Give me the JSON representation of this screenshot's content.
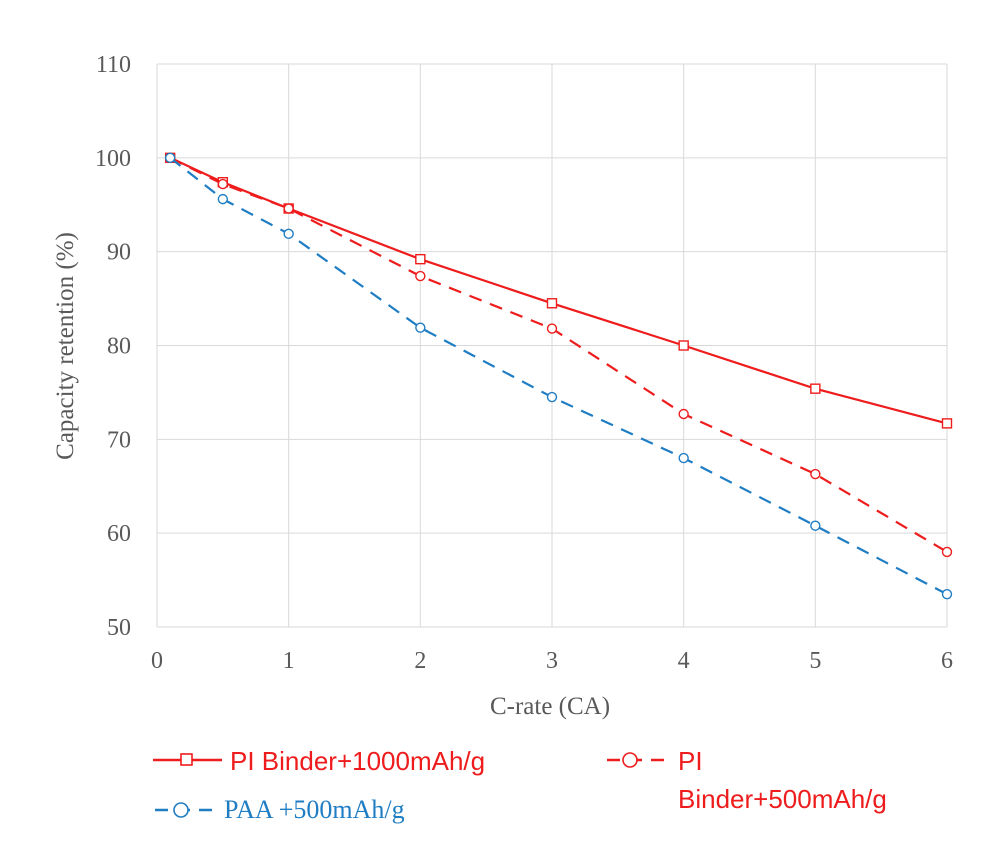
{
  "chart_data": {
    "type": "line",
    "xlabel": "C-rate (CA)",
    "ylabel": "Capacity retention (%)",
    "xlim": [
      0,
      6
    ],
    "ylim": [
      50,
      110
    ],
    "x_ticks": [
      "0",
      "1",
      "2",
      "3",
      "4",
      "5",
      "6"
    ],
    "y_ticks": [
      "50",
      "60",
      "70",
      "80",
      "90",
      "100",
      "110"
    ],
    "grid": true,
    "legend_position": "bottom",
    "series": [
      {
        "name": "PI Binder+1000mAh/g",
        "color": "#ee1c1c",
        "line_style": "solid",
        "marker": "square",
        "x": [
          0.1,
          0.5,
          1,
          2,
          3,
          4,
          5,
          6
        ],
        "y": [
          100,
          97.4,
          94.6,
          89.2,
          84.5,
          80.0,
          75.4,
          71.7
        ]
      },
      {
        "name": "PI Binder+500mAh/g",
        "color": "#ee1c1c",
        "line_style": "dashed",
        "marker": "circle",
        "x": [
          0.1,
          0.5,
          1,
          2,
          3,
          4,
          5,
          6
        ],
        "y": [
          100,
          97.2,
          94.6,
          87.4,
          81.8,
          72.7,
          66.3,
          58.0
        ]
      },
      {
        "name": "PAA +500mAh/g",
        "color": "#1f7dc4",
        "line_style": "dashed",
        "marker": "circle",
        "x": [
          0.1,
          0.5,
          1,
          2,
          3,
          4,
          5,
          6
        ],
        "y": [
          100,
          95.6,
          91.9,
          81.9,
          74.5,
          68.0,
          60.8,
          53.5
        ]
      }
    ]
  },
  "legend": {
    "item1": "PI Binder+1000mAh/g",
    "item2_line1": "PI",
    "item2_line2": "Binder+500mAh/g",
    "item3": "PAA +500mAh/g"
  }
}
